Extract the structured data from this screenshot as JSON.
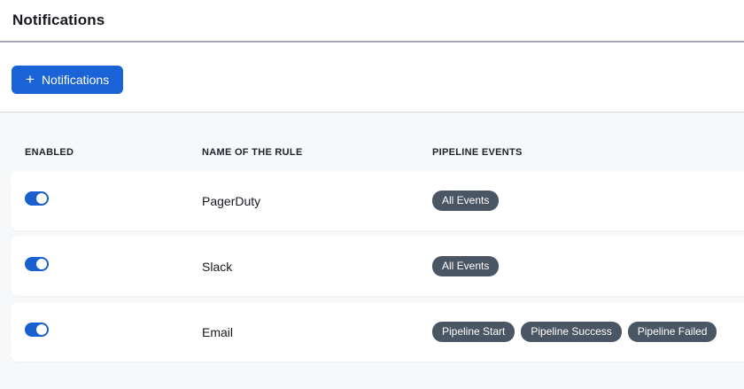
{
  "page": {
    "title": "Notifications"
  },
  "toolbar": {
    "add_button": {
      "icon": "plus-icon",
      "icon_glyph": "+",
      "label": "Notifications"
    }
  },
  "table": {
    "columns": [
      "Enabled",
      "Name of the rule",
      "Pipeline Events"
    ],
    "rows": [
      {
        "enabled": true,
        "name": "PagerDuty",
        "events": [
          "All Events"
        ]
      },
      {
        "enabled": true,
        "name": "Slack",
        "events": [
          "All Events"
        ]
      },
      {
        "enabled": true,
        "name": "Email",
        "events": [
          "Pipeline Start",
          "Pipeline Success",
          "Pipeline Failed"
        ]
      }
    ]
  },
  "colors": {
    "accent_blue": "#1a63d6",
    "toggle_blue": "#1a5fd0",
    "badge_slate": "#4a5663",
    "section_bg": "#f7f8fa",
    "divider": "#a9aab8",
    "header_text": "#20242c"
  }
}
